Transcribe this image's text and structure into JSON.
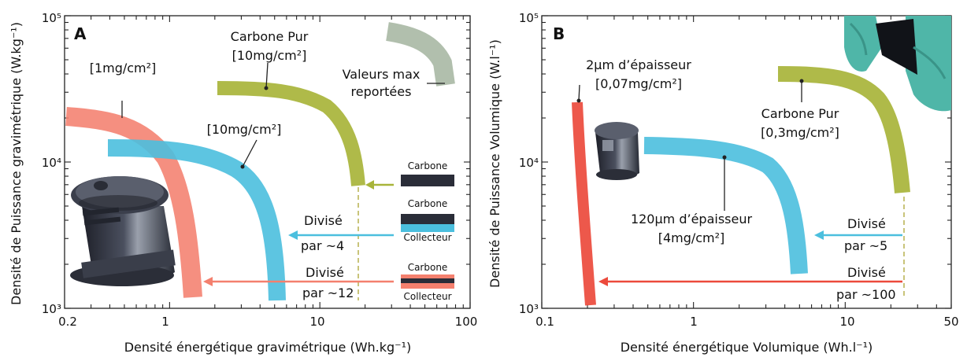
{
  "panels": [
    {
      "letter": "A",
      "xlabel": "Densité énergétique gravimétrique (Wh.kg⁻¹)",
      "ylabel": "Densité de Puissance gravimétrique (W.kg⁻¹)",
      "xticks": [
        "0.2",
        "1",
        "10",
        "100"
      ],
      "yticks": [
        "10³",
        "10⁴",
        "10⁵"
      ],
      "labels": {
        "carbone_pur_line1": "Carbone Pur",
        "carbone_pur_line2": "[10mg/cm²]",
        "valeurs_max_line1": "Valeurs max",
        "valeurs_max_line2": "reportées",
        "c1mg": "[1mg/cm²]",
        "c10mg": "[10mg/cm²]",
        "divise4_line1": "Divisé",
        "divise4_line2": "par ~4",
        "divise12_line1": "Divisé",
        "divise12_line2": "par ~12"
      },
      "legend": {
        "carbone1": "Carbone",
        "carbone2": "Carbone",
        "collecteur2": "Collecteur",
        "carbone3": "Carbone",
        "collecteur3": "Collecteur"
      }
    },
    {
      "letter": "B",
      "xlabel": "Densité énergétique Volumique (Wh.l⁻¹)",
      "ylabel": "Densité de Puissance Volumique (W.l⁻¹)",
      "xticks": [
        "0.1",
        "1",
        "10",
        "50"
      ],
      "yticks": [
        "10³",
        "10⁴",
        "10⁵"
      ],
      "labels": {
        "epais2_line1": "2µm d’épaisseur",
        "epais2_line2": "[0,07mg/cm²]",
        "carbone_pur_line1": "Carbone Pur",
        "carbone_pur_line2": "[0,3mg/cm²]",
        "epais120_line1": "120µm d’épaisseur",
        "epais120_line2": "[4mg/cm²]",
        "divise5_line1": "Divisé",
        "divise5_line2": "par ~5",
        "divise100_line1": "Divisé",
        "divise100_line2": "par ~100"
      }
    }
  ],
  "colors": {
    "olive": "#a8b43a",
    "cyan": "#4bbfde",
    "salmon": "#f4806e",
    "red": "#ec4a3c",
    "sage": "#a9b8a4",
    "dark": "#2a2d38",
    "dashed": "#c9c47a"
  },
  "chart_data": [
    {
      "type": "line",
      "xscale": "log",
      "yscale": "log",
      "xlim": [
        0.2,
        100
      ],
      "ylim": [
        1000,
        100000
      ],
      "series": [
        {
          "name": "Carbone Pur [10mg/cm²]",
          "color": "olive",
          "points": [
            [
              2.2,
              34000
            ],
            [
              5,
              33000
            ],
            [
              9,
              30000
            ],
            [
              13,
              24000
            ],
            [
              16,
              15000
            ],
            [
              19,
              7200
            ]
          ]
        },
        {
          "name": "[1mg/cm²]",
          "color": "salmon",
          "points": [
            [
              0.22,
              23000
            ],
            [
              0.5,
              20000
            ],
            [
              0.75,
              15000
            ],
            [
              1.0,
              9000
            ],
            [
              1.25,
              4000
            ],
            [
              1.45,
              1200
            ]
          ]
        },
        {
          "name": "[10mg/cm²]",
          "color": "cyan",
          "points": [
            [
              0.4,
              13000
            ],
            [
              1.2,
              12800
            ],
            [
              2.5,
              11000
            ],
            [
              3.8,
              8000
            ],
            [
              4.8,
              4500
            ],
            [
              5.5,
              2000
            ],
            [
              5.8,
              1100
            ]
          ]
        },
        {
          "name": "Valeurs max reportées",
          "color": "sage",
          "points": [
            [
              25,
              72000
            ],
            [
              50,
              65000
            ],
            [
              68,
              48000
            ],
            [
              73,
              36000
            ]
          ]
        }
      ],
      "annotations": [
        "Divisé par ~4",
        "Divisé par ~12"
      ]
    },
    {
      "type": "line",
      "xscale": "log",
      "yscale": "log",
      "xlim": [
        0.1,
        50
      ],
      "ylim": [
        1000,
        100000
      ],
      "series": [
        {
          "name": "2µm d’épaisseur [0,07mg/cm²]",
          "color": "red",
          "points": [
            [
              0.16,
              28000
            ],
            [
              0.17,
              15000
            ],
            [
              0.18,
              7000
            ],
            [
              0.19,
              3000
            ],
            [
              0.2,
              1000
            ]
          ]
        },
        {
          "name": "Carbone Pur [0,3mg/cm²]",
          "color": "olive",
          "points": [
            [
              4.5,
              44000
            ],
            [
              9,
              41000
            ],
            [
              15,
              34000
            ],
            [
              21,
              24000
            ],
            [
              26,
              14000
            ],
            [
              30,
              6400
            ]
          ]
        },
        {
          "name": "120µm d’épaisseur [4mg/cm²]",
          "color": "cyan",
          "points": [
            [
              0.5,
              13000
            ],
            [
              1.5,
              12300
            ],
            [
              2.5,
              10000
            ],
            [
              3.4,
              7000
            ],
            [
              4.0,
              4500
            ],
            [
              4.4,
              2500
            ],
            [
              4.6,
              1600
            ]
          ]
        }
      ],
      "annotations": [
        "Divisé par ~5",
        "Divisé par ~100"
      ]
    }
  ]
}
